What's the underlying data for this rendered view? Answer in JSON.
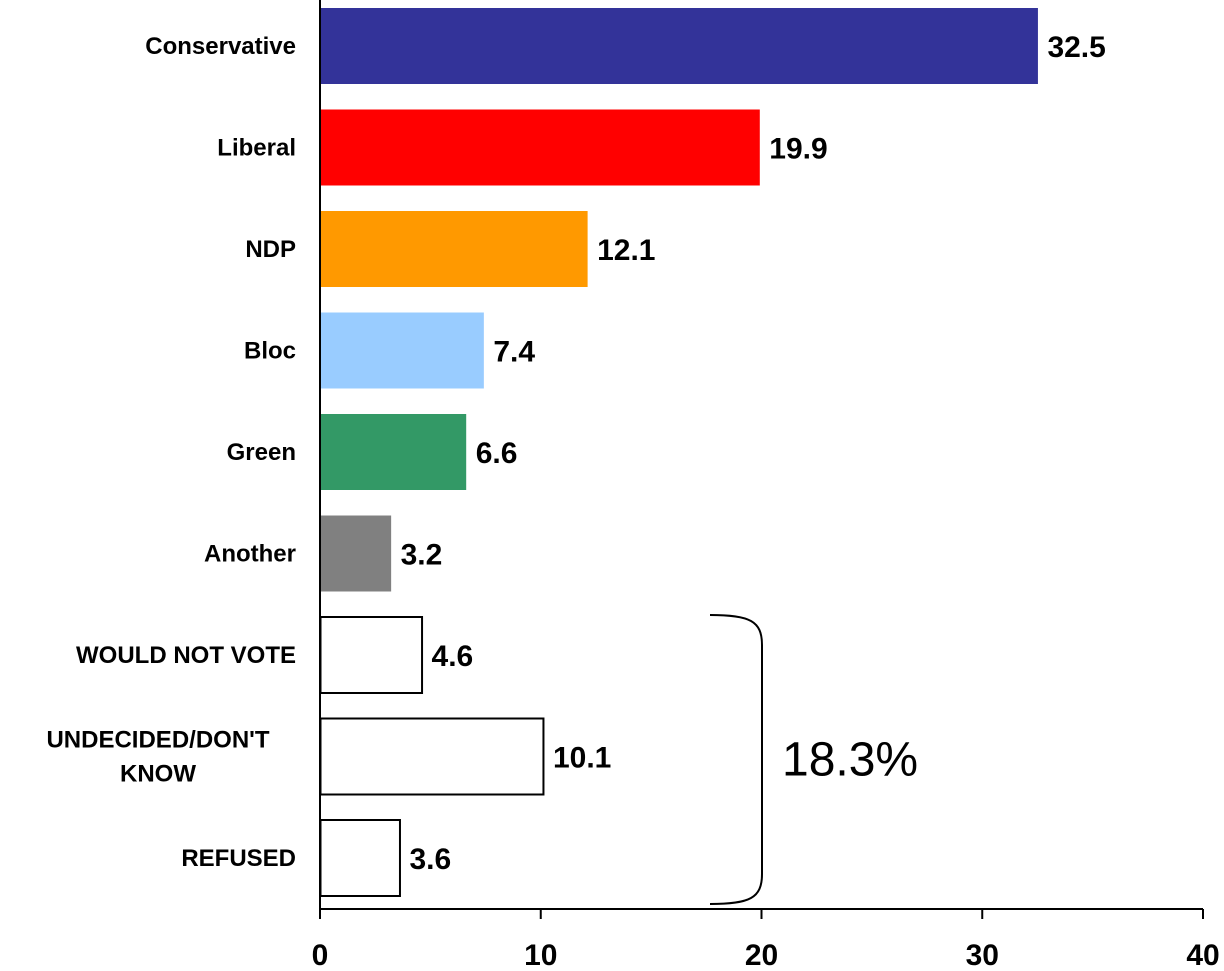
{
  "chart_data": {
    "type": "bar",
    "orientation": "horizontal",
    "categories": [
      [
        "Conservative"
      ],
      [
        "Liberal"
      ],
      [
        "NDP"
      ],
      [
        "Bloc"
      ],
      [
        "Green"
      ],
      [
        "Another"
      ],
      [
        "WOULD NOT VOTE"
      ],
      [
        "UNDECIDED/DON'T",
        "KNOW"
      ],
      [
        "REFUSED"
      ]
    ],
    "values": [
      32.5,
      19.9,
      12.1,
      7.4,
      6.6,
      3.2,
      4.6,
      10.1,
      3.6
    ],
    "value_labels": [
      "32.5",
      "19.9",
      "12.1",
      "7.4",
      "6.6",
      "3.2",
      "4.6",
      "10.1",
      "3.6"
    ],
    "colors": [
      "#333399",
      "#ff0000",
      "#ff9900",
      "#99ccff",
      "#339966",
      "#808080",
      "#ffffff",
      "#ffffff",
      "#ffffff"
    ],
    "xlim": [
      0,
      40
    ],
    "xticks": [
      "0",
      "10",
      "20",
      "30",
      "40"
    ],
    "grid": false,
    "annotation": {
      "text": "18.3%",
      "bracket": "right curly brace spanning WOULD NOT VOTE, UNDECIDED/DON'T KNOW, REFUSED"
    }
  }
}
